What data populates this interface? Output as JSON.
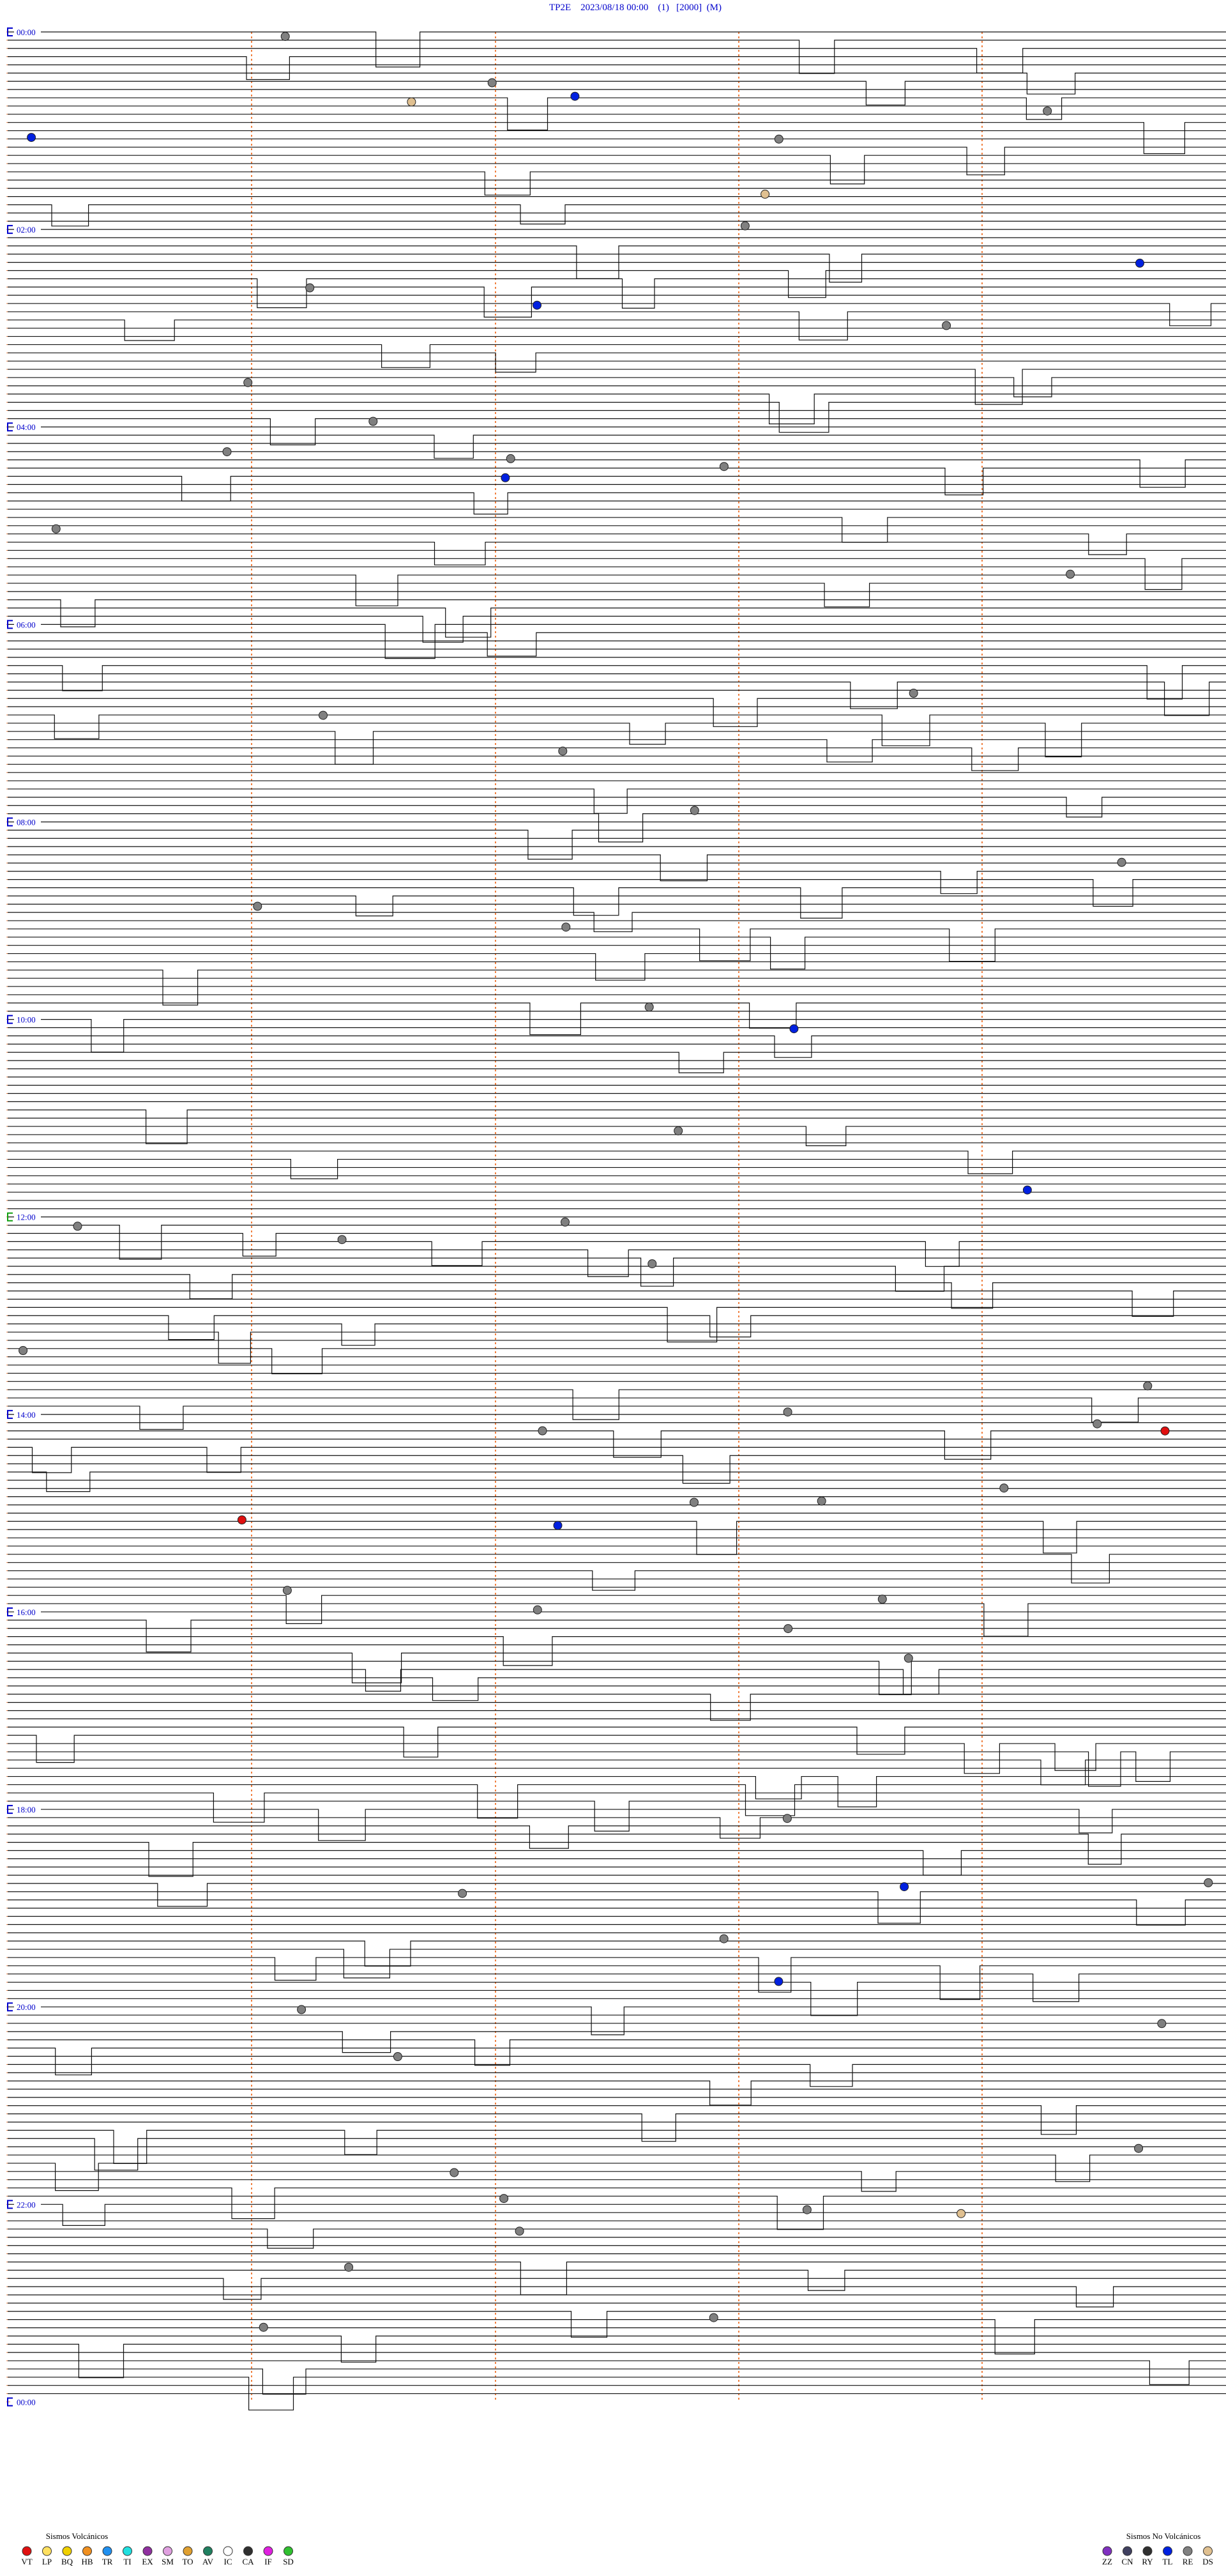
{
  "header": {
    "title": "TP2E    2023/08/18 00:00    (1)   [2000]  (M)"
  },
  "time_labels": [
    "00:00",
    "02:00",
    "04:00",
    "06:00",
    "08:00",
    "10:00",
    "12:00",
    "14:00",
    "16:00",
    "18:00",
    "20:00",
    "22:00",
    "00:00"
  ],
  "legend": {
    "volcanic": {
      "title": "Sismos Volcánicos",
      "items": [
        {
          "code": "VT",
          "color": "#e01010"
        },
        {
          "code": "LP",
          "color": "#ffe060"
        },
        {
          "code": "BQ",
          "color": "#f0d000"
        },
        {
          "code": "HB",
          "color": "#f09020"
        },
        {
          "code": "TR",
          "color": "#2090f0"
        },
        {
          "code": "TI",
          "color": "#20e0e0"
        },
        {
          "code": "EX",
          "color": "#9030a0"
        },
        {
          "code": "SM",
          "color": "#e0a0e0"
        },
        {
          "code": "TO",
          "color": "#e0a030"
        },
        {
          "code": "AV",
          "color": "#208060"
        },
        {
          "code": "IC",
          "color": "#ffffff"
        },
        {
          "code": "CA",
          "color": "#303030"
        },
        {
          "code": "IF",
          "color": "#e020e0"
        },
        {
          "code": "SD",
          "color": "#30c030"
        }
      ]
    },
    "non_volcanic": {
      "title": "Sismos No Volcánicos",
      "items": [
        {
          "code": "ZZ",
          "color": "#8030c0"
        },
        {
          "code": "CN",
          "color": "#404060"
        },
        {
          "code": "RY",
          "color": "#303030"
        },
        {
          "code": "TL",
          "color": "#0020e0"
        },
        {
          "code": "RE",
          "color": "#808080"
        },
        {
          "code": "DS",
          "color": "#e0c090"
        }
      ]
    }
  }
}
